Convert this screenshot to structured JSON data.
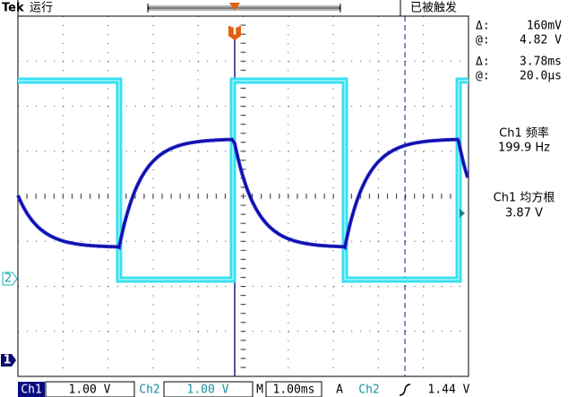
{
  "header": {
    "brand": "Tek",
    "status": "运行",
    "trigger_state": "已被触发",
    "trigger_marker": "T"
  },
  "cursor_readout": [
    [
      "Δ:",
      "160mV"
    ],
    [
      "@:",
      "4.82 V"
    ],
    [
      "Δ:",
      "3.78ms"
    ],
    [
      "@:",
      "20.0µs"
    ]
  ],
  "measurements": [
    {
      "label": "Ch1 频率",
      "value": "199.9 Hz"
    },
    {
      "label": "Ch1 均方根",
      "value": "3.87 V"
    }
  ],
  "channel_markers": [
    "2",
    "1"
  ],
  "status_bar": {
    "ch1": "Ch1",
    "ch1_scale": "1.00 V",
    "ch2": "Ch2",
    "ch2_scale": "1.00 V",
    "timebase_label": "M",
    "timebase": "1.00ms",
    "trigger_mode": "A",
    "trigger_source": "Ch2",
    "trigger_level": "1.44 V"
  }
}
